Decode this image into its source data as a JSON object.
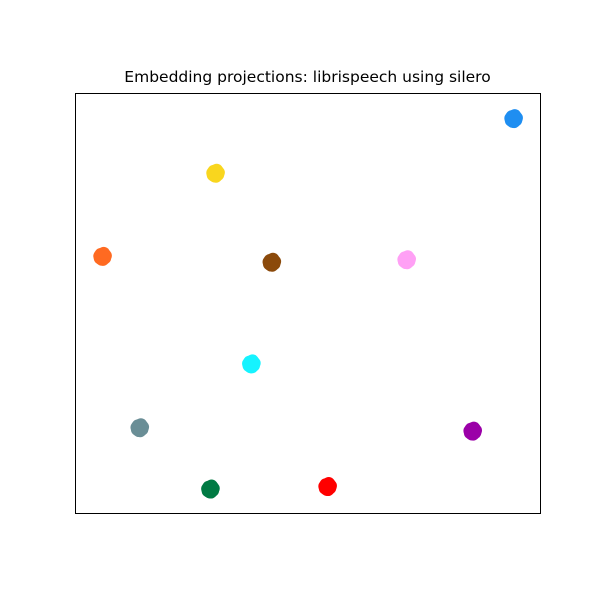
{
  "chart_data": {
    "type": "scatter",
    "title": "Embedding projections: librispeech using silero",
    "xlabel": "",
    "ylabel": "",
    "axes_ticks_visible": false,
    "grid": false,
    "legend": "none",
    "xlim": [
      0,
      100
    ],
    "ylim": [
      0,
      100
    ],
    "series": [
      {
        "color": "#1f8ef1",
        "x": 94.2,
        "y": 94.0
      },
      {
        "color": "#f9d61e",
        "x": 30.1,
        "y": 81.0
      },
      {
        "color": "#ff6a21",
        "x": 5.8,
        "y": 61.2
      },
      {
        "color": "#8b4a0b",
        "x": 42.2,
        "y": 59.8
      },
      {
        "color": "#ffa0f5",
        "x": 71.2,
        "y": 60.4
      },
      {
        "color": "#16f3ff",
        "x": 37.8,
        "y": 35.6
      },
      {
        "color": "#6a8e96",
        "x": 13.8,
        "y": 20.4
      },
      {
        "color": "#9b00a8",
        "x": 85.4,
        "y": 19.6
      },
      {
        "color": "#007a43",
        "x": 29.0,
        "y": 5.8
      },
      {
        "color": "#ff0000",
        "x": 54.2,
        "y": 6.4
      }
    ]
  }
}
